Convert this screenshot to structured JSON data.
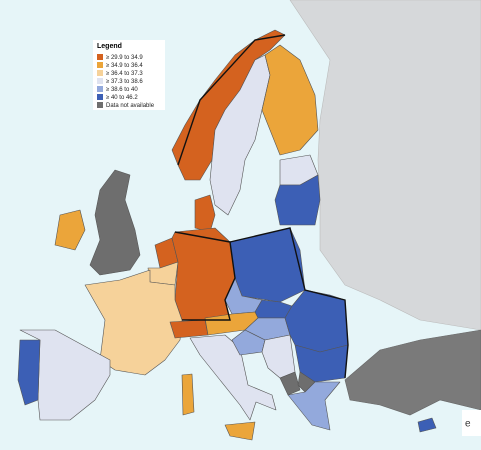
{
  "legend": {
    "title": "Legend",
    "items": [
      {
        "label": "≥ 29.9 to 34.9",
        "color": "#d4621f"
      },
      {
        "label": "≥ 34.9 to 36.4",
        "color": "#eba53a"
      },
      {
        "label": "≥ 36.4 to 37.3",
        "color": "#f6d29a"
      },
      {
        "label": "≥ 37.3 to 38.6",
        "color": "#dfe3f0"
      },
      {
        "label": "≥ 38.6 to 40",
        "color": "#93a9dc"
      },
      {
        "label": "≥ 40 to 46.2",
        "color": "#3c5fb5"
      },
      {
        "label": "Data not available",
        "color": "#6e6e6e"
      }
    ]
  },
  "watermark": "e"
}
